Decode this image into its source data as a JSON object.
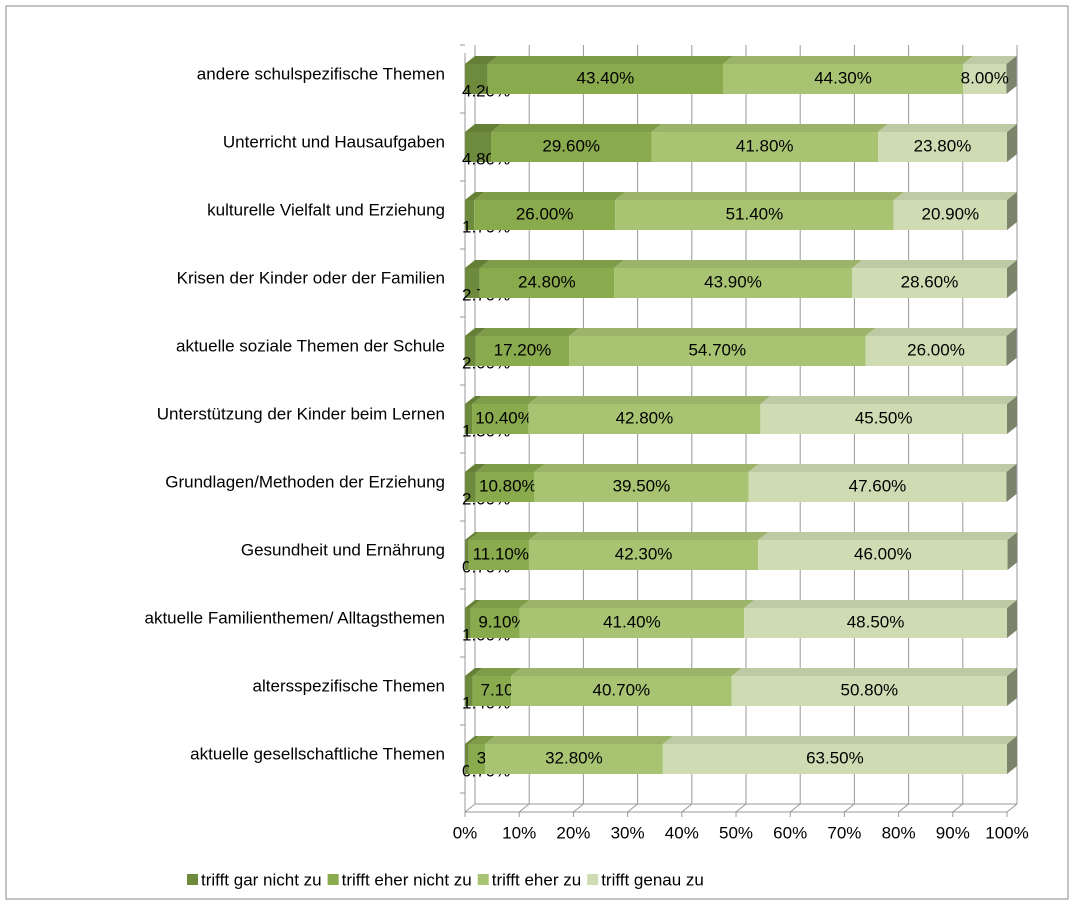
{
  "chart_data": {
    "type": "bar3d_stacked_horizontal",
    "categories": [
      "andere schulspezifische Themen",
      "Unterricht und Hausaufgaben",
      "kulturelle Vielfalt und Erziehung",
      "Krisen der Kinder oder der Familien",
      "aktuelle soziale Themen der Schule",
      "Unterstützung der Kinder beim Lernen",
      "Grundlagen/Methoden der Erziehung",
      "Gesundheit und Ernährung",
      "aktuelle Familienthemen/ Alltagsthemen",
      "altersspezifische Themen",
      "aktuelle gesellschaftliche Themen"
    ],
    "series": [
      {
        "name": "trifft gar nicht zu",
        "color": "#6e8a3c",
        "values": [
          4.2,
          4.8,
          1.7,
          2.7,
          2.0,
          1.3,
          2.0,
          0.7,
          1.0,
          1.4,
          0.7
        ],
        "value_labels": [
          "4.20%",
          "4.80%",
          "1.70%",
          "2.70%",
          "2.00%",
          "1.30%",
          "2.00%",
          "0.70%",
          "1.00%",
          "1.40%",
          "0.70%"
        ]
      },
      {
        "name": "trifft eher nicht zu",
        "color": "#8aaa4e",
        "values": [
          43.4,
          29.6,
          26.0,
          24.8,
          17.2,
          10.4,
          10.8,
          11.1,
          9.1,
          7.1,
          3.0
        ],
        "value_labels": [
          "43.40%",
          "29.60%",
          "26.00%",
          "24.80%",
          "17.20%",
          "10.40%",
          "10.80%",
          "11.10%",
          "9.10%",
          "7.10%",
          "3.00%"
        ]
      },
      {
        "name": "trifft eher zu",
        "color": "#a8c472",
        "values": [
          44.3,
          41.8,
          51.4,
          43.9,
          54.7,
          42.8,
          39.5,
          42.3,
          41.4,
          40.7,
          32.8
        ],
        "value_labels": [
          "44.30%",
          "41.80%",
          "51.40%",
          "43.90%",
          "54.70%",
          "42.80%",
          "39.50%",
          "42.30%",
          "41.40%",
          "40.70%",
          "32.80%"
        ]
      },
      {
        "name": "trifft genau zu",
        "color": "#cfdcb3",
        "values": [
          8.0,
          23.8,
          20.9,
          28.6,
          26.0,
          45.5,
          47.6,
          46.0,
          48.5,
          50.8,
          63.5
        ],
        "value_labels": [
          "8.00%",
          "23.80%",
          "20.90%",
          "28.60%",
          "26.00%",
          "45.50%",
          "47.60%",
          "46.00%",
          "48.50%",
          "50.80%",
          "63.50%"
        ]
      }
    ],
    "xlim": [
      0,
      100
    ],
    "xticks": [
      {
        "value": 0,
        "label": "0%"
      },
      {
        "value": 10,
        "label": "10%"
      },
      {
        "value": 20,
        "label": "20%"
      },
      {
        "value": 30,
        "label": "30%"
      },
      {
        "value": 40,
        "label": "40%"
      },
      {
        "value": 50,
        "label": "50%"
      },
      {
        "value": 60,
        "label": "60%"
      },
      {
        "value": 70,
        "label": "70%"
      },
      {
        "value": 80,
        "label": "80%"
      },
      {
        "value": 90,
        "label": "90%"
      },
      {
        "value": 100,
        "label": "100%"
      }
    ],
    "grid": true,
    "legend": "bottom"
  }
}
